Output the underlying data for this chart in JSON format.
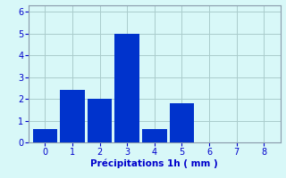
{
  "bar_values": [
    0.6,
    2.4,
    2.0,
    5.0,
    0.6,
    1.8,
    0.0,
    0.0,
    0.0
  ],
  "bar_positions": [
    0,
    1,
    2,
    3,
    4,
    5,
    6,
    7,
    8
  ],
  "bar_color": "#0033cc",
  "bar_width": 0.9,
  "background_color": "#d8f8f8",
  "grid_color": "#aacccc",
  "xlabel": "Précipitations 1h ( mm )",
  "xlabel_color": "#0000cc",
  "xlabel_fontsize": 7.5,
  "tick_color": "#0000cc",
  "tick_fontsize": 7,
  "ylim": [
    0,
    6.3
  ],
  "xlim": [
    -0.6,
    8.6
  ],
  "yticks": [
    0,
    1,
    2,
    3,
    4,
    5,
    6
  ],
  "xticks": [
    0,
    1,
    2,
    3,
    4,
    5,
    6,
    7,
    8
  ]
}
